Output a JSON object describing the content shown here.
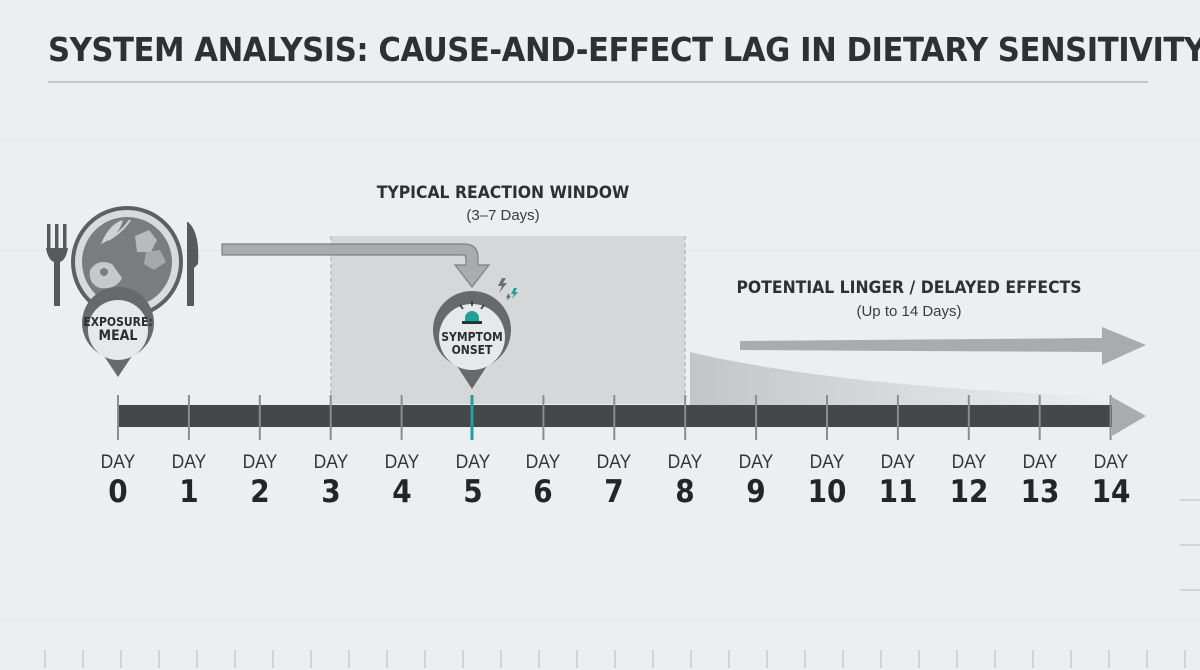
{
  "title": "SYSTEM ANALYSIS: CAUSE-AND-EFFECT LAG IN DIETARY SENSITIVITY",
  "reaction_window": {
    "heading": "TYPICAL REACTION WINDOW",
    "range": "(3–7 Days)",
    "start_day": 3,
    "end_day": 8
  },
  "linger": {
    "heading": "POTENTIAL LINGER / DELAYED EFFECTS",
    "range": "(Up to 14 Days)"
  },
  "exposure_pin": {
    "line1": "EXPOSURE:",
    "line2": "MEAL",
    "day": 0
  },
  "symptom_pin": {
    "line1": "SYMPTOM",
    "line2": "ONSET",
    "day": 5
  },
  "timeline": {
    "day_word": "DAY",
    "days": [
      "0",
      "1",
      "2",
      "3",
      "4",
      "5",
      "6",
      "7",
      "8",
      "9",
      "10",
      "11",
      "12",
      "13",
      "14"
    ]
  },
  "colors": {
    "bar": "#464749",
    "arrow": "#a9abad",
    "window": "#d5d7d8",
    "accent": "#1aa39b",
    "pin": "#67696b"
  },
  "icons": [
    "meal-plate-icon",
    "fork-icon",
    "knife-icon",
    "siren-icon",
    "lightning-icon"
  ]
}
